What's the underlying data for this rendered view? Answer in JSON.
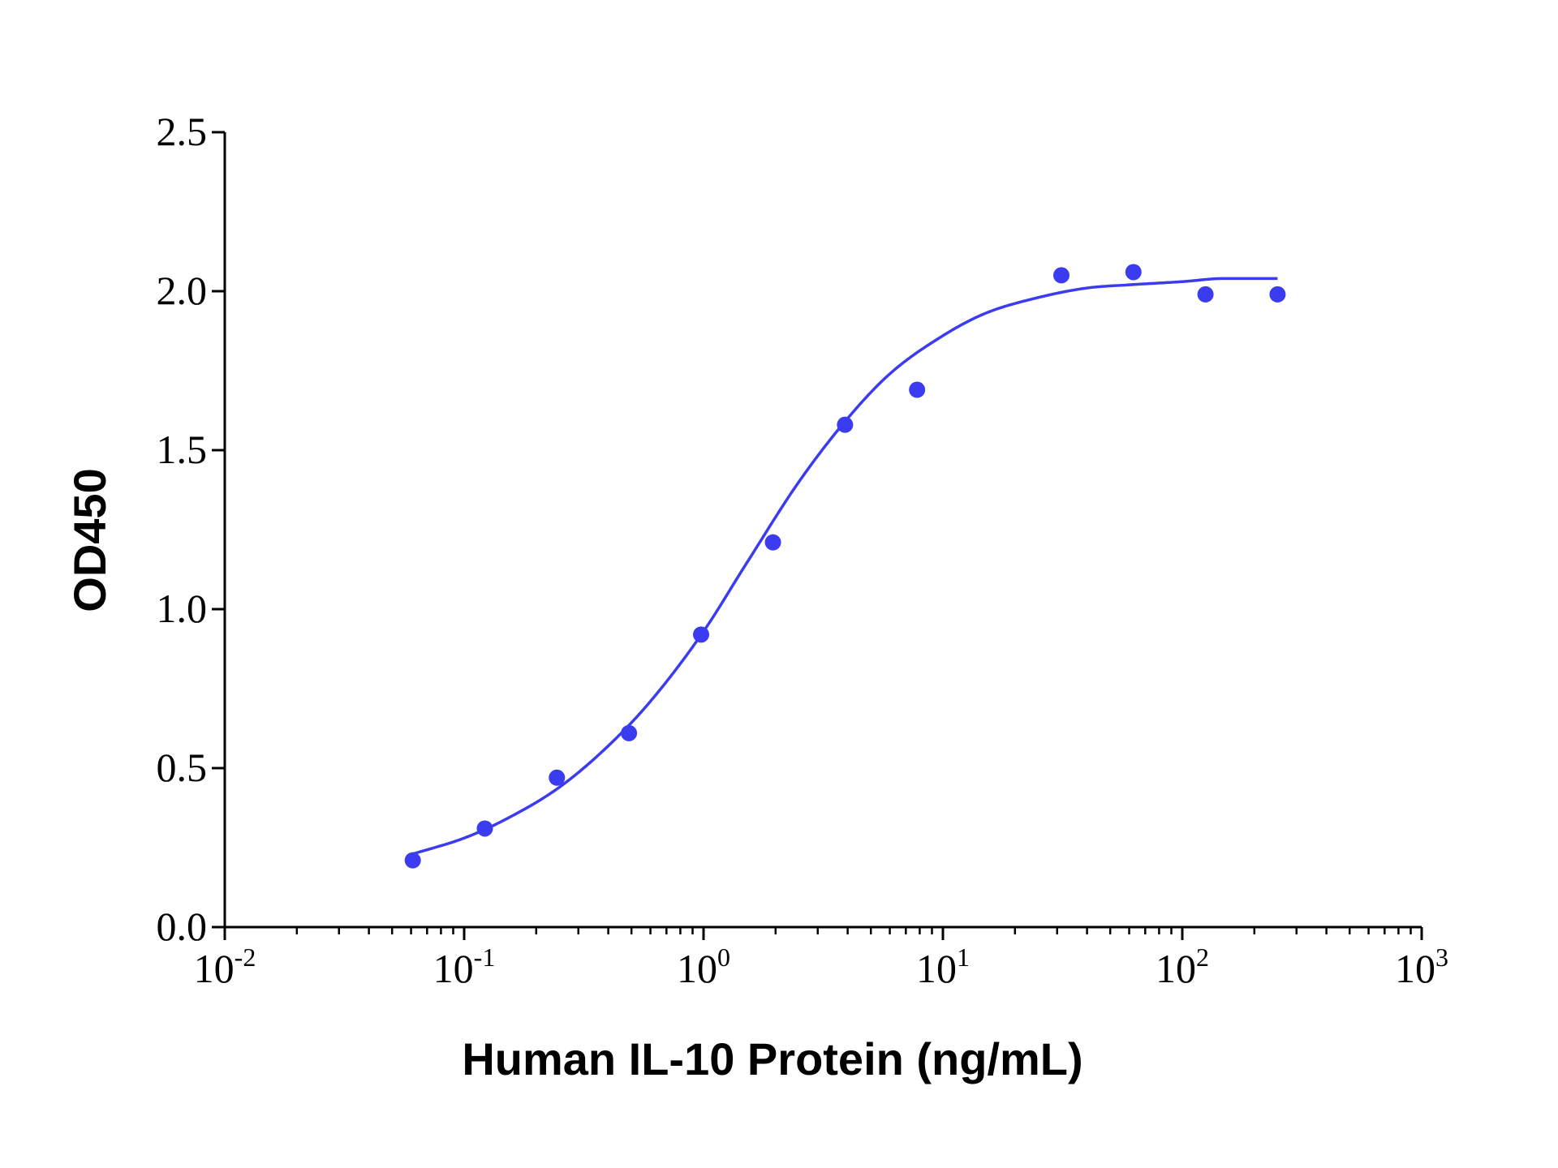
{
  "chart_data": {
    "type": "scatter",
    "title": "",
    "xlabel": "Human IL-10 Protein (ng/mL)",
    "ylabel": "OD450",
    "x_scale": "log",
    "xlim": [
      0.01,
      1000
    ],
    "ylim": [
      0.0,
      2.5
    ],
    "x_ticks": [
      {
        "value": 0.01,
        "base": "10",
        "exp": "-2"
      },
      {
        "value": 0.1,
        "base": "10",
        "exp": "-1"
      },
      {
        "value": 1,
        "base": "10",
        "exp": "0"
      },
      {
        "value": 10,
        "base": "10",
        "exp": "1"
      },
      {
        "value": 100,
        "base": "10",
        "exp": "2"
      },
      {
        "value": 1000,
        "base": "10",
        "exp": "3"
      }
    ],
    "y_ticks": [
      "0.0",
      "0.5",
      "1.0",
      "1.5",
      "2.0",
      "2.5"
    ],
    "grid": false,
    "legend": "none",
    "series": [
      {
        "color": "#3b3bef",
        "x": [
          0.061,
          0.122,
          0.244,
          0.488,
          0.977,
          1.95,
          3.9,
          7.8,
          31.25,
          62.5,
          125,
          250
        ],
        "y": [
          0.21,
          0.31,
          0.47,
          0.61,
          0.92,
          1.21,
          1.58,
          1.69,
          2.05,
          2.06,
          1.99,
          1.99
        ]
      }
    ],
    "fit": {
      "color": "#3b3bef",
      "x_range": [
        0.061,
        250
      ],
      "x": [
        0.061,
        0.1,
        0.15,
        0.25,
        0.4,
        0.6,
        1.0,
        1.5,
        2.5,
        4.0,
        6.0,
        10,
        15,
        25,
        40,
        60,
        100,
        150,
        250
      ],
      "y": [
        0.23,
        0.28,
        0.34,
        0.44,
        0.57,
        0.71,
        0.93,
        1.14,
        1.4,
        1.6,
        1.74,
        1.86,
        1.93,
        1.98,
        2.01,
        2.02,
        2.03,
        2.04,
        2.04
      ]
    }
  }
}
